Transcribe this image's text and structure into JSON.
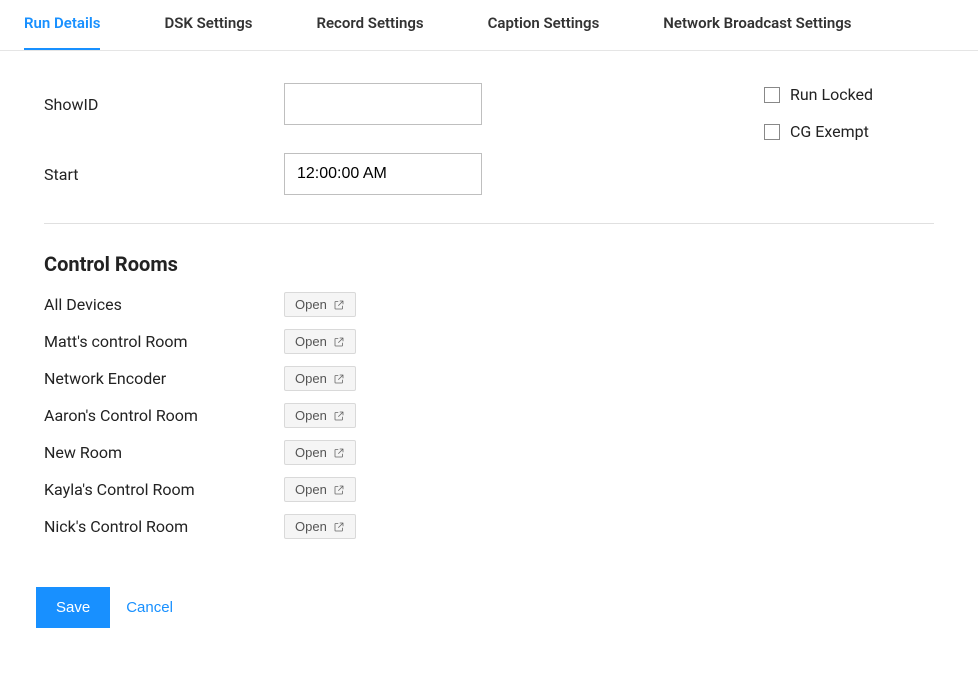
{
  "tabs": {
    "run_details": "Run Details",
    "dsk_settings": "DSK Settings",
    "record_settings": "Record Settings",
    "caption_settings": "Caption Settings",
    "network_broadcast_settings": "Network Broadcast Settings"
  },
  "form": {
    "show_id_label": "ShowID",
    "show_id_value": "",
    "start_label": "Start",
    "start_value": "12:00:00 AM"
  },
  "checks": {
    "run_locked_label": "Run Locked",
    "run_locked_checked": false,
    "cg_exempt_label": "CG Exempt",
    "cg_exempt_checked": false
  },
  "control_rooms": {
    "title": "Control Rooms",
    "open_label": "Open",
    "rooms": [
      "All Devices",
      "Matt's control Room",
      "Network Encoder",
      "Aaron's Control Room",
      "New Room",
      "Kayla's Control Room",
      "Nick's Control Room"
    ]
  },
  "actions": {
    "save": "Save",
    "cancel": "Cancel"
  },
  "colors": {
    "accent": "#1890ff",
    "border": "#d9d9d9",
    "text": "#222222",
    "muted_bg": "#f5f5f5"
  }
}
